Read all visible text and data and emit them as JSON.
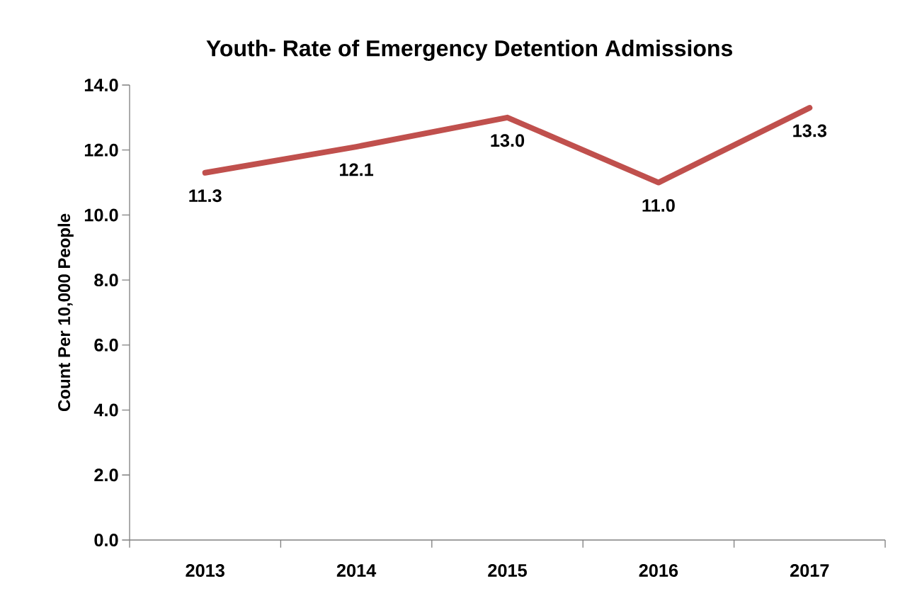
{
  "chart_data": {
    "type": "line",
    "title": "Youth- Rate of Emergency Detention Admissions",
    "ylabel": "Count Per 10,000 People",
    "categories": [
      "2013",
      "2014",
      "2015",
      "2016",
      "2017"
    ],
    "series": [
      {
        "color": "#c0504d",
        "values": [
          11.3,
          12.1,
          13.0,
          11.0,
          13.3
        ],
        "value_labels": [
          "11.3",
          "12.1",
          "13.0",
          "11.0",
          "13.3"
        ]
      }
    ],
    "ylim": [
      0,
      14
    ],
    "yticks": [
      {
        "value": 0,
        "label": "0.0"
      },
      {
        "value": 2,
        "label": "2.0"
      },
      {
        "value": 4,
        "label": "4.0"
      },
      {
        "value": 6,
        "label": "6.0"
      },
      {
        "value": 8,
        "label": "8.0"
      },
      {
        "value": 10,
        "label": "10.0"
      },
      {
        "value": 12,
        "label": "12.0"
      },
      {
        "value": 14,
        "label": "14.0"
      }
    ],
    "grid": false,
    "marker": "none",
    "line_style": "solid"
  }
}
